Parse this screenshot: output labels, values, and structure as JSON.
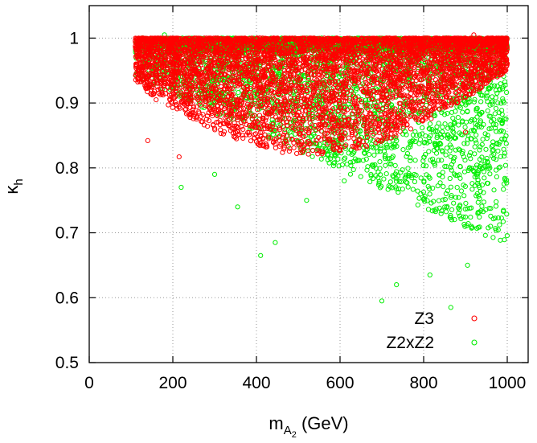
{
  "chart_data": {
    "type": "scatter",
    "title": "",
    "xlabel": {
      "main": "m",
      "sub": "A",
      "subsub": "2",
      "suffix": " (GeV)"
    },
    "ylabel": {
      "main": "κ",
      "sub": "h"
    },
    "xlim": [
      0,
      1050
    ],
    "ylim": [
      0.5,
      1.05
    ],
    "xticks": [
      0,
      200,
      400,
      600,
      800,
      1000
    ],
    "yticks": [
      0.5,
      0.6,
      0.7,
      0.8,
      0.9,
      1
    ],
    "grid": true,
    "legend_position": "bottom-right",
    "series": [
      {
        "name": "Z2xZ2",
        "color": "#00ee00",
        "marker": "open-circle",
        "x_range": [
          110,
          1000
        ],
        "y_range": [
          0.58,
          1.0
        ],
        "n_points": 4500,
        "points": [
          [
            180,
            1.005
          ],
          [
            220,
            0.77
          ],
          [
            300,
            0.79
          ],
          [
            355,
            0.74
          ],
          [
            410,
            0.665
          ],
          [
            445,
            0.685
          ],
          [
            700,
            0.595
          ],
          [
            735,
            0.62
          ],
          [
            815,
            0.635
          ],
          [
            865,
            0.585
          ],
          [
            905,
            0.65
          ],
          [
            960,
            0.71
          ],
          [
            980,
            0.8
          ],
          [
            520,
            0.75
          ],
          [
            610,
            0.78
          ]
        ]
      },
      {
        "name": "Z3",
        "color": "#ff0000",
        "marker": "open-circle",
        "x_range": [
          110,
          1000
        ],
        "y_range": [
          0.81,
          1.0
        ],
        "n_points": 5000,
        "points": [
          [
            140,
            0.842
          ],
          [
            215,
            0.817
          ],
          [
            120,
            0.965
          ],
          [
            160,
            0.905
          ],
          [
            260,
            0.905
          ],
          [
            640,
            0.83
          ],
          [
            900,
            0.855
          ],
          [
            920,
            1.005
          ],
          [
            575,
            0.845
          ]
        ]
      }
    ]
  }
}
